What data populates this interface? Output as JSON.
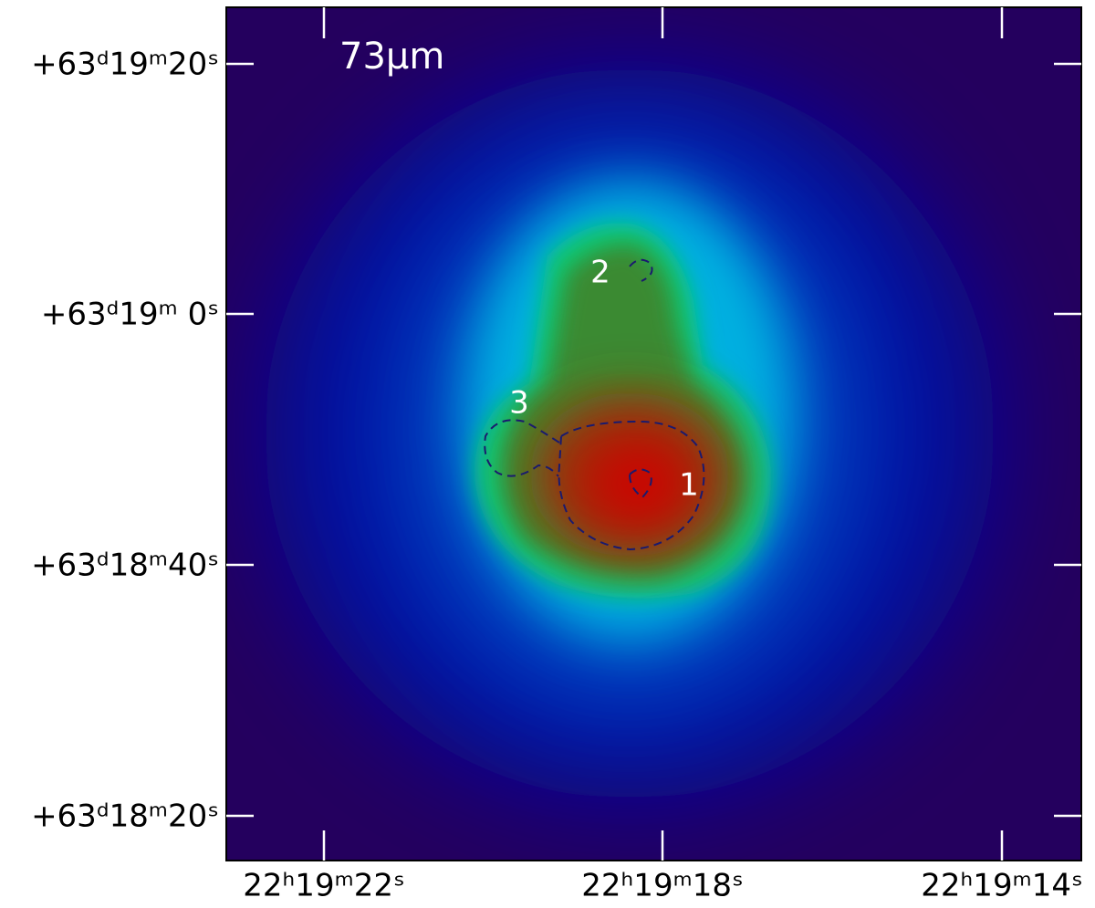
{
  "image": {
    "band_label": "73μm",
    "sources": [
      "1",
      "2",
      "3"
    ],
    "y_ticks": [
      "+63ᵈ19ᵐ20ˢ",
      "+63ᵈ19ᵐ 0ˢ",
      "+63ᵈ18ᵐ40ˢ",
      "+63ᵈ18ᵐ20ˢ"
    ],
    "x_ticks": [
      "22ʰ19ᵐ22ˢ",
      "22ʰ19ᵐ18ˢ",
      "22ʰ19ᵐ14ˢ"
    ]
  }
}
